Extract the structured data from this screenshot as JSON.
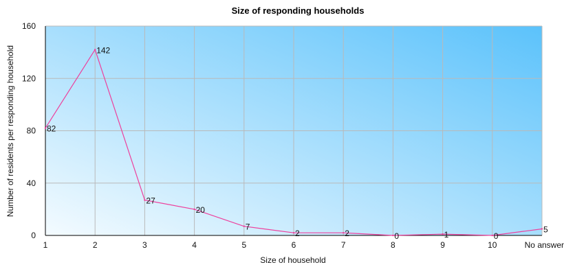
{
  "chart_data": {
    "type": "line",
    "title": "Size of responding households",
    "xlabel": "Size of household",
    "ylabel": "Number of residents per responding household",
    "categories": [
      "1",
      "2",
      "3",
      "4",
      "5",
      "6",
      "7",
      "8",
      "9",
      "10",
      "No answer"
    ],
    "series": [
      {
        "values": [
          82,
          142,
          27,
          20,
          7,
          2,
          2,
          0,
          1,
          0,
          5
        ]
      }
    ],
    "data_labels": [
      "82",
      "142",
      "27",
      "20",
      "7",
      "2",
      "2",
      "0",
      "1",
      "0",
      "5"
    ],
    "ylim": [
      0,
      160
    ],
    "yticks": [
      "0",
      "40",
      "80",
      "120",
      "160"
    ],
    "grid": true,
    "colors": {
      "line": "#ee3f9c",
      "grid": "#b9b9b9",
      "axis": "#000000",
      "gradient_start": "#f4fbff",
      "gradient_end": "#5bc2fb"
    }
  }
}
